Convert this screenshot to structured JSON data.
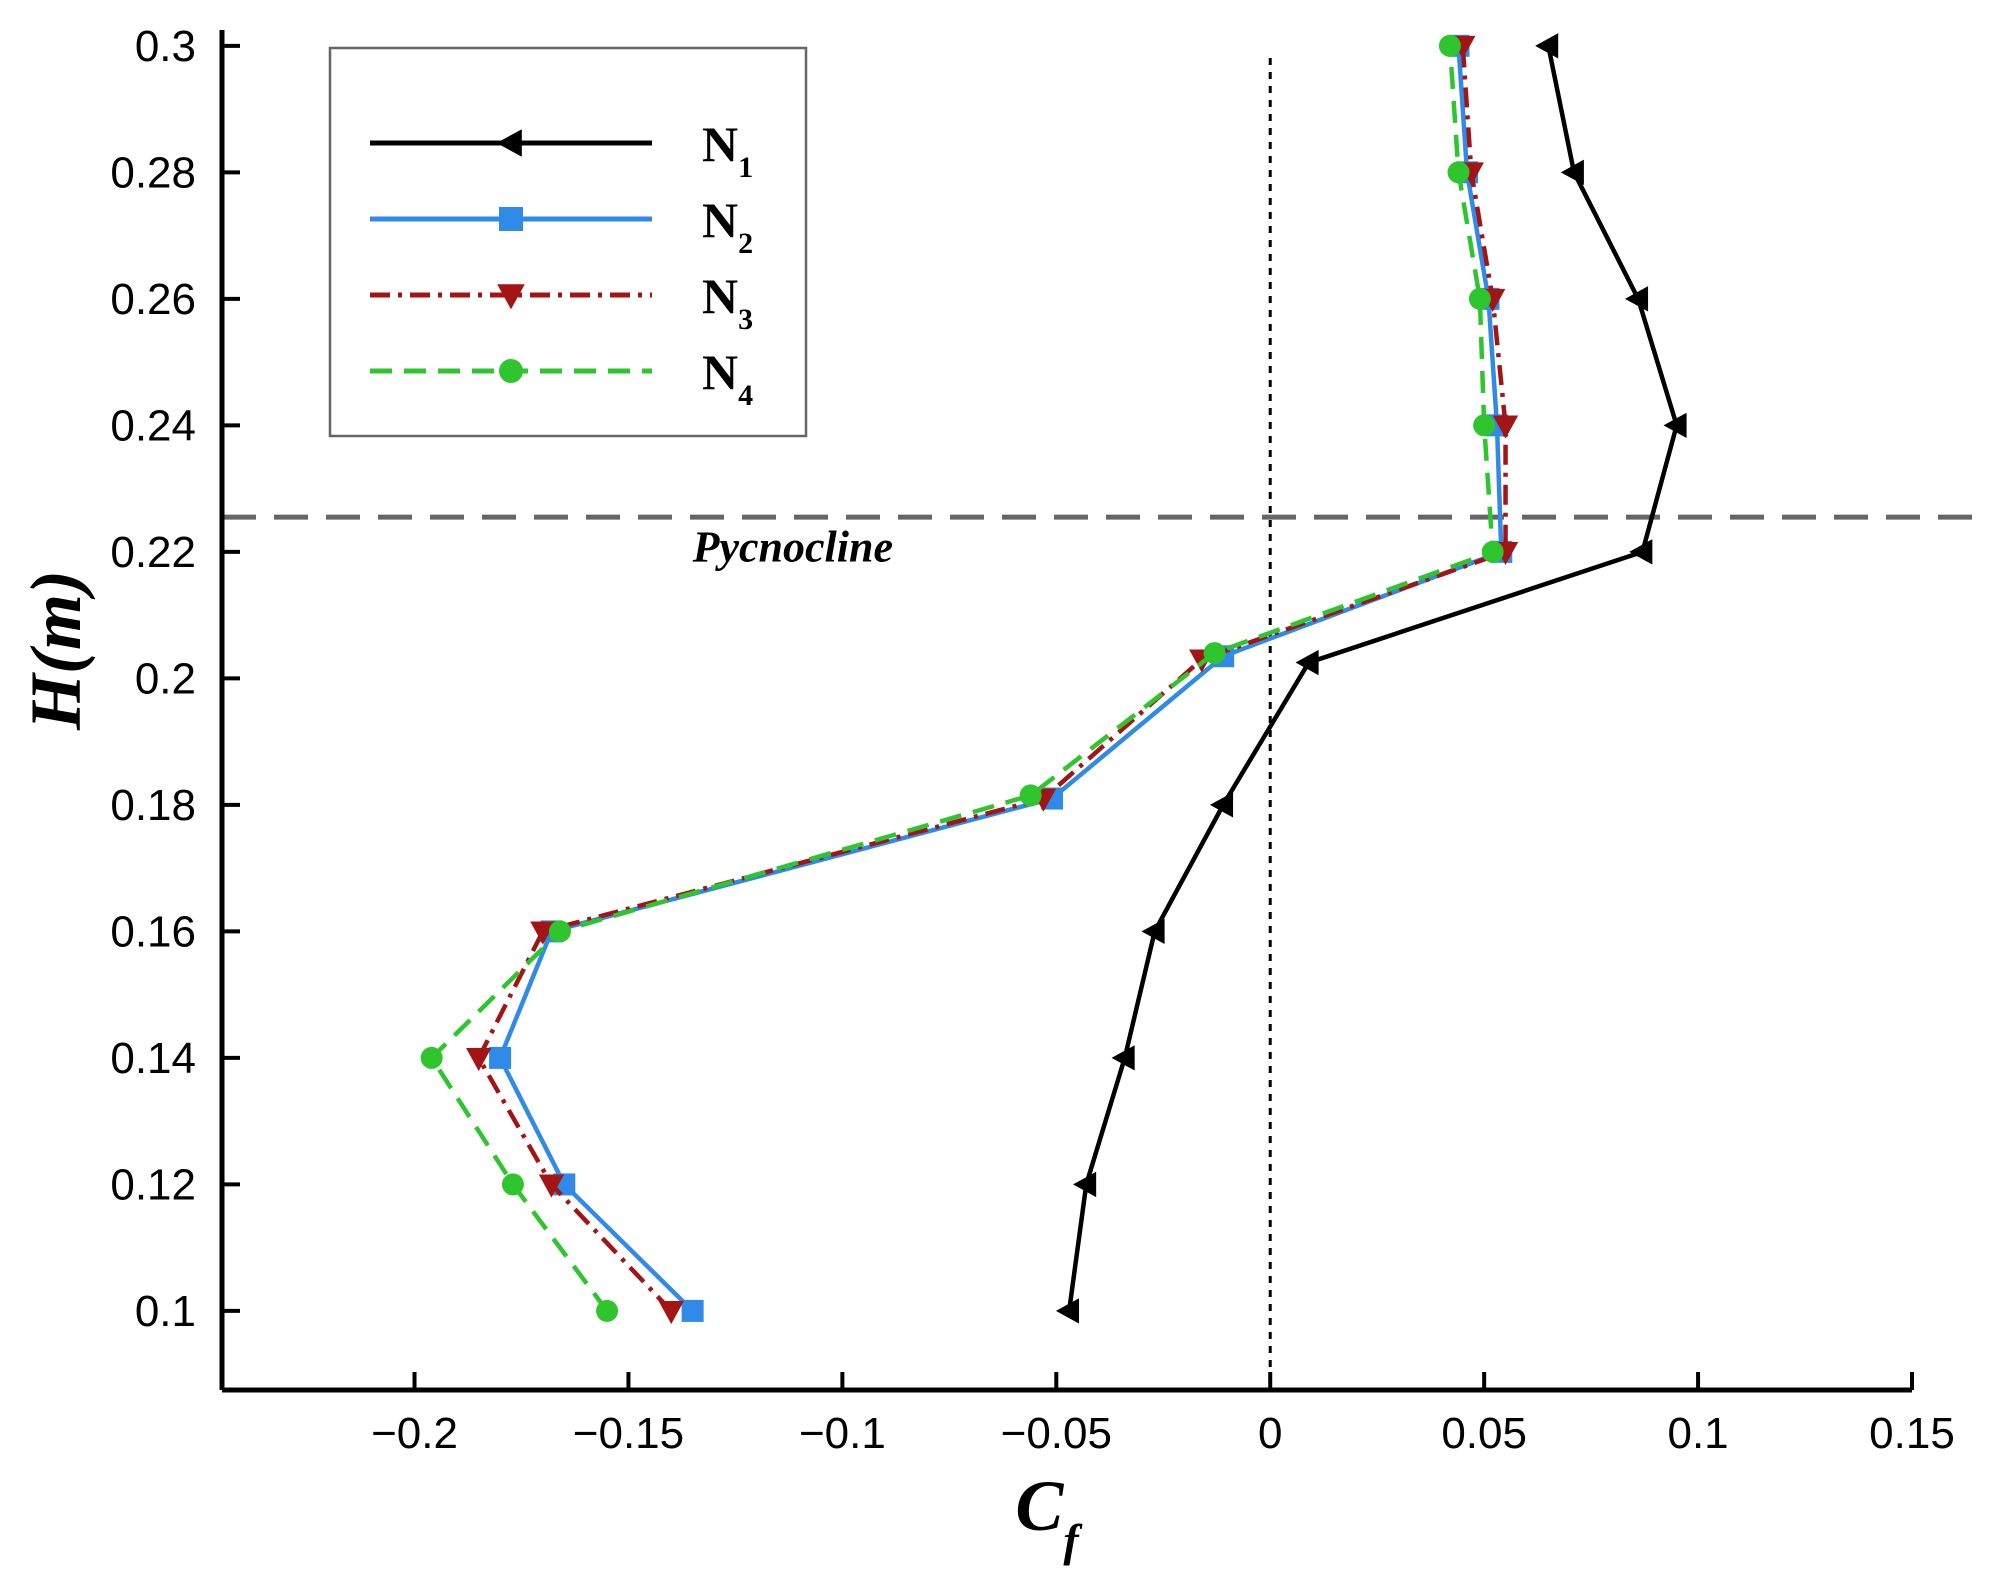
{
  "chart_data": {
    "type": "line",
    "title": "",
    "xlabel": "C",
    "xlabel_subscript": "f",
    "ylabel": "H(m)",
    "xlim": [
      -0.245,
      0.15
    ],
    "ylim": [
      0.0875,
      0.3025
    ],
    "x_ticks": [
      -0.2,
      -0.15,
      -0.1,
      -0.05,
      0,
      0.05,
      0.1,
      0.15
    ],
    "x_tick_labels": [
      "−0.2",
      "−0.15",
      "−0.1",
      "−0.05",
      "0",
      "0.05",
      "0.1",
      "0.15"
    ],
    "y_ticks": [
      0.1,
      0.12,
      0.14,
      0.16,
      0.18,
      0.2,
      0.22,
      0.24,
      0.26,
      0.28,
      0.3
    ],
    "y_tick_labels": [
      "0.1",
      "0.12",
      "0.14",
      "0.16",
      "0.18",
      "0.2",
      "0.22",
      "0.24",
      "0.26",
      "0.28",
      "0.3"
    ],
    "grid": false,
    "legend_position": "top-left",
    "reference_lines": [
      {
        "orientation": "vertical",
        "value": 0,
        "style": "dotted",
        "color": "#000000"
      },
      {
        "orientation": "horizontal",
        "value": 0.2255,
        "style": "dashed",
        "color": "#666666"
      }
    ],
    "annotations": [
      {
        "text": "Pycnocline",
        "x": -0.135,
        "y": 0.2185
      }
    ],
    "series": [
      {
        "name": "N",
        "subscript": "1",
        "color": "#000000",
        "line_style": "solid",
        "marker": "triangle-left",
        "x": [
          -0.047,
          -0.043,
          -0.034,
          -0.027,
          -0.011,
          0.009,
          0.087,
          0.095,
          0.086,
          0.071,
          0.065
        ],
        "y": [
          0.1,
          0.12,
          0.14,
          0.16,
          0.18,
          0.2025,
          0.22,
          0.24,
          0.26,
          0.28,
          0.3
        ]
      },
      {
        "name": "N",
        "subscript": "2",
        "color": "#2f8ae8",
        "line_style": "solid",
        "marker": "square",
        "x": [
          -0.135,
          -0.165,
          -0.18,
          -0.168,
          -0.051,
          -0.011,
          0.054,
          0.053,
          0.051,
          0.046,
          0.044
        ],
        "y": [
          0.1,
          0.12,
          0.14,
          0.16,
          0.181,
          0.2035,
          0.22,
          0.24,
          0.26,
          0.28,
          0.3
        ]
      },
      {
        "name": "N",
        "subscript": "3",
        "color": "#a31515",
        "line_style": "dash-dot",
        "marker": "triangle-down",
        "x": [
          -0.14,
          -0.168,
          -0.185,
          -0.17,
          -0.053,
          -0.016,
          0.055,
          0.055,
          0.052,
          0.047,
          0.045
        ],
        "y": [
          0.1,
          0.12,
          0.14,
          0.16,
          0.181,
          0.203,
          0.22,
          0.24,
          0.26,
          0.28,
          0.3
        ]
      },
      {
        "name": "N",
        "subscript": "4",
        "color": "#2ec52e",
        "line_style": "dashed",
        "marker": "circle",
        "x": [
          -0.155,
          -0.177,
          -0.196,
          -0.166,
          -0.056,
          -0.013,
          0.052,
          0.05,
          0.049,
          0.044,
          0.042
        ],
        "y": [
          0.1,
          0.12,
          0.14,
          0.16,
          0.1815,
          0.204,
          0.22,
          0.24,
          0.26,
          0.28,
          0.3
        ]
      }
    ]
  }
}
